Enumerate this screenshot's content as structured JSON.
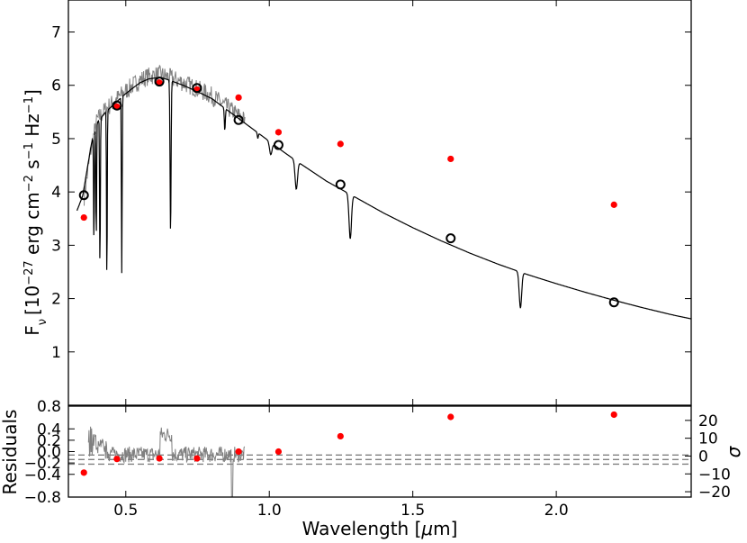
{
  "chart_data": [
    {
      "type": "scatter",
      "panel": "top",
      "ylabel_prefix": "F",
      "ylabel_sub": "ν",
      "ylabel_unit": "[10",
      "ylabel_exp1": "−27",
      "ylabel_mid": " erg cm",
      "ylabel_exp2": "−2",
      "ylabel_mid2": " s",
      "ylabel_exp3": "−1",
      "ylabel_end": " Hz",
      "ylabel_exp4": "−1",
      "ylabel_close": "]",
      "xlim": [
        0.3,
        2.47
      ],
      "ylim": [
        0,
        7.6
      ],
      "yticks": [
        1,
        2,
        3,
        4,
        5,
        6,
        7
      ],
      "ytick_labels": [
        "1",
        "2",
        "3",
        "4",
        "5",
        "6",
        "7"
      ],
      "observed_photometry": {
        "color": "#ff0000",
        "x": [
          0.354,
          0.469,
          0.617,
          0.748,
          0.893,
          1.032,
          1.248,
          1.632,
          2.201
        ],
        "y": [
          3.52,
          5.6,
          6.05,
          5.92,
          5.77,
          5.12,
          4.9,
          4.62,
          3.76
        ]
      },
      "model_photometry": {
        "color": "#000000",
        "x": [
          0.354,
          0.469,
          0.617,
          0.748,
          0.893,
          1.032,
          1.248,
          1.632,
          2.201
        ],
        "y": [
          3.94,
          5.62,
          6.07,
          5.95,
          5.35,
          4.88,
          4.14,
          3.13,
          1.93
        ]
      },
      "model_sed": {
        "color": "#000000",
        "continuum_x": [
          0.33,
          0.35,
          0.38,
          0.4,
          0.43,
          0.46,
          0.49,
          0.52,
          0.55,
          0.58,
          0.62,
          0.65,
          0.7,
          0.75,
          0.8,
          0.85,
          0.9,
          0.95,
          1.0,
          1.05,
          1.1,
          1.15,
          1.2,
          1.3,
          1.4,
          1.5,
          1.6,
          1.7,
          1.8,
          1.9,
          2.0,
          2.1,
          2.2,
          2.3,
          2.4,
          2.47
        ],
        "continuum_y": [
          3.65,
          3.93,
          4.9,
          5.3,
          5.5,
          5.65,
          5.8,
          5.93,
          6.05,
          6.12,
          6.15,
          6.1,
          6.0,
          5.88,
          5.75,
          5.55,
          5.35,
          5.15,
          4.95,
          4.75,
          4.56,
          4.38,
          4.2,
          3.9,
          3.6,
          3.33,
          3.08,
          2.85,
          2.64,
          2.45,
          2.28,
          2.12,
          1.97,
          1.83,
          1.7,
          1.62
        ],
        "absorption_lines": [
          {
            "x": 0.389,
            "depth_to": 3.05
          },
          {
            "x": 0.397,
            "depth_to": 3.1
          },
          {
            "x": 0.41,
            "depth_to": 2.55
          },
          {
            "x": 0.434,
            "depth_to": 2.3
          },
          {
            "x": 0.486,
            "depth_to": 2.48
          },
          {
            "x": 0.656,
            "depth_to": 3.2
          },
          {
            "x": 0.845,
            "depth_to": 5.15
          },
          {
            "x": 0.96,
            "depth_to": 5.0
          },
          {
            "x": 1.005,
            "depth_to": 4.7
          },
          {
            "x": 1.094,
            "depth_to": 4.05
          },
          {
            "x": 1.282,
            "depth_to": 3.12
          },
          {
            "x": 1.875,
            "depth_to": 1.82
          }
        ]
      },
      "observed_spectrum": {
        "color": "#808080",
        "x_range": [
          0.355,
          0.915
        ]
      }
    },
    {
      "type": "scatter",
      "panel": "bottom",
      "ylabel": "Residuals",
      "xlabel_prefix": "Wavelength [",
      "xlabel_mu": "μ",
      "xlabel_suffix": "m]",
      "right_ylabel": "σ",
      "xlim": [
        0.3,
        2.47
      ],
      "ylim": [
        -0.8,
        0.8
      ],
      "xticks": [
        0.5,
        1.0,
        1.5,
        2.0
      ],
      "xtick_labels": [
        "0.5",
        "1.0",
        "1.5",
        "2.0"
      ],
      "yticks": [
        -0.8,
        -0.4,
        -0.2,
        0.0,
        0.2,
        0.4,
        0.8
      ],
      "ytick_labels": [
        "−0.8",
        "−0.4",
        "−0.2",
        "0.0",
        "0.2",
        "0.4",
        "0.8"
      ],
      "right_yticks": [
        -20,
        -10,
        0,
        10,
        20
      ],
      "right_ytick_labels": [
        "−20",
        "−10",
        "0",
        "10",
        "20"
      ],
      "right_ylim": [
        -23,
        28
      ],
      "sigma_bands": [
        -0.06,
        -0.14,
        -0.22
      ],
      "residual_points": {
        "color": "#ff0000",
        "x": [
          0.354,
          0.469,
          0.617,
          0.748,
          0.893,
          1.032,
          1.248,
          1.632,
          2.201
        ],
        "y": [
          -0.37,
          -0.13,
          -0.12,
          -0.12,
          0.0,
          0.0,
          0.27,
          0.61,
          0.65
        ]
      },
      "residual_spectrum": {
        "color": "#808080",
        "x_range": [
          0.37,
          0.915
        ]
      }
    }
  ]
}
